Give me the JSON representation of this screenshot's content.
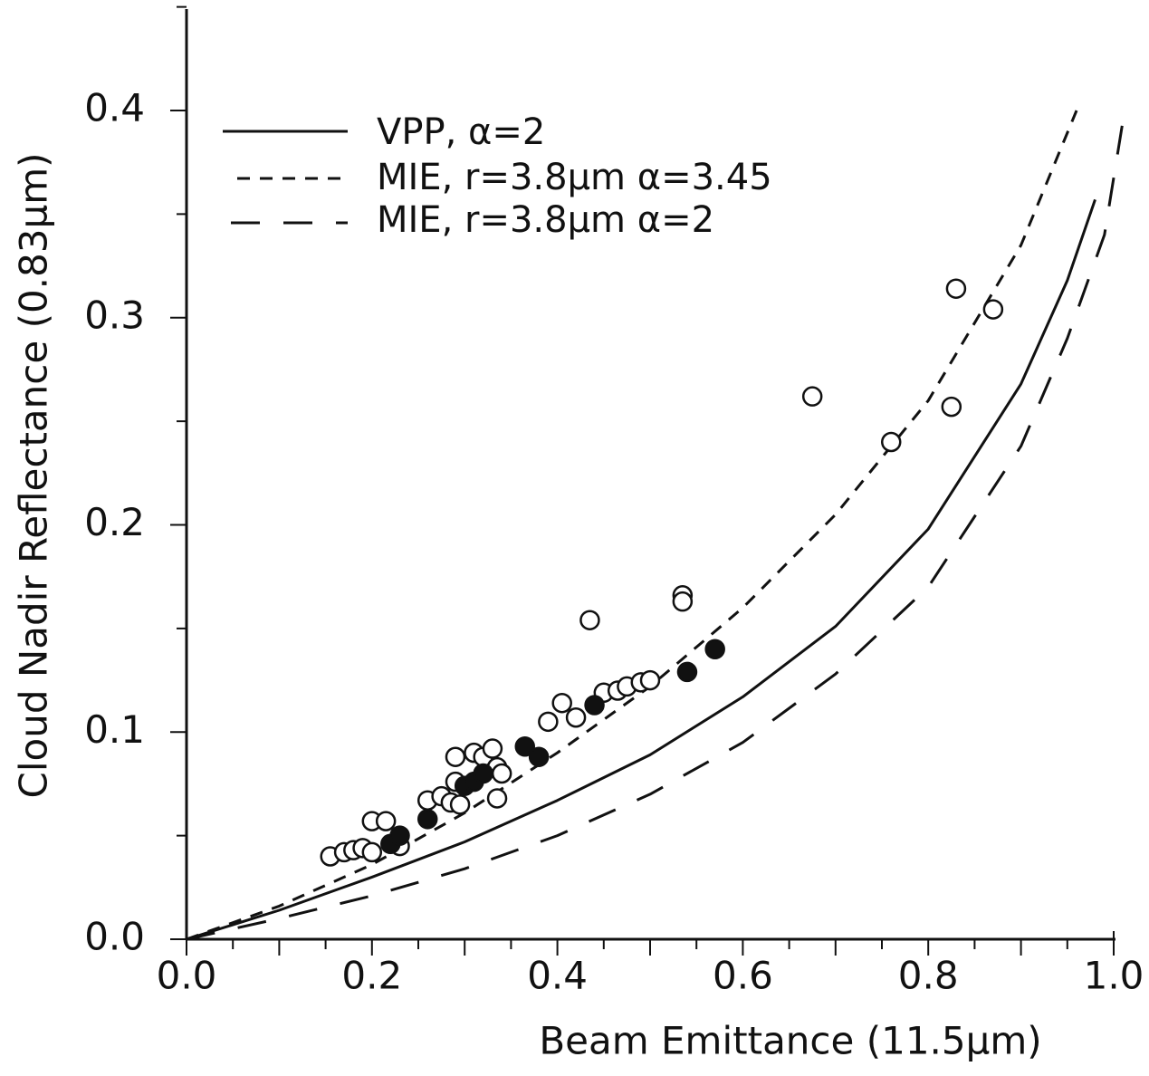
{
  "chart_data": {
    "type": "scatter",
    "xlabel": "Beam Emittance (11.5μm)",
    "ylabel": "Cloud Nadir Reflectance (0.83μm)",
    "xlim": [
      0.0,
      1.0
    ],
    "ylim": [
      0.0,
      0.45
    ],
    "x_tick_labels": [
      "0.0",
      "0.2",
      "0.4",
      "0.6",
      "0.8",
      "1.0"
    ],
    "y_tick_labels": [
      "0.0",
      "0.1",
      "0.2",
      "0.3",
      "0.4"
    ],
    "grid": false,
    "legend_position": "top-left",
    "colors": {
      "ink": "#111111",
      "background": "#ffffff"
    },
    "series": [
      {
        "name": "VPP, α=2",
        "kind": "line",
        "dash": "solid",
        "x": [
          0.0,
          0.1,
          0.2,
          0.3,
          0.4,
          0.5,
          0.6,
          0.7,
          0.8,
          0.9,
          0.95,
          0.98
        ],
        "y": [
          0.0,
          0.014,
          0.03,
          0.047,
          0.067,
          0.089,
          0.117,
          0.151,
          0.198,
          0.268,
          0.318,
          0.357
        ]
      },
      {
        "name": "MIE, r=3.8μm α=3.45",
        "kind": "line",
        "dash": "short",
        "x": [
          0.0,
          0.1,
          0.2,
          0.3,
          0.4,
          0.5,
          0.6,
          0.7,
          0.8,
          0.9,
          0.96
        ],
        "y": [
          0.0,
          0.016,
          0.036,
          0.061,
          0.09,
          0.122,
          0.16,
          0.205,
          0.26,
          0.335,
          0.4
        ]
      },
      {
        "name": "MIE, r=3.8μm α=2",
        "kind": "line",
        "dash": "long",
        "x": [
          0.0,
          0.1,
          0.2,
          0.3,
          0.4,
          0.5,
          0.6,
          0.7,
          0.8,
          0.9,
          0.95,
          0.99,
          1.01
        ],
        "y": [
          0.0,
          0.01,
          0.021,
          0.034,
          0.05,
          0.07,
          0.095,
          0.128,
          0.17,
          0.238,
          0.29,
          0.34,
          0.395
        ]
      },
      {
        "name": "",
        "kind": "open",
        "x": [
          0.155,
          0.17,
          0.18,
          0.19,
          0.2,
          0.2,
          0.215,
          0.23,
          0.26,
          0.275,
          0.285,
          0.29,
          0.29,
          0.295,
          0.31,
          0.32,
          0.33,
          0.335,
          0.335,
          0.34,
          0.39,
          0.405,
          0.42,
          0.435,
          0.45,
          0.465,
          0.475,
          0.49,
          0.5,
          0.535,
          0.535,
          0.675,
          0.76,
          0.825,
          0.83,
          0.87
        ],
        "y": [
          0.04,
          0.042,
          0.043,
          0.044,
          0.042,
          0.057,
          0.057,
          0.045,
          0.067,
          0.069,
          0.066,
          0.076,
          0.088,
          0.065,
          0.09,
          0.088,
          0.092,
          0.083,
          0.068,
          0.08,
          0.105,
          0.114,
          0.107,
          0.154,
          0.119,
          0.12,
          0.122,
          0.124,
          0.125,
          0.166,
          0.163,
          0.262,
          0.24,
          0.257,
          0.314,
          0.304
        ]
      },
      {
        "name": "",
        "kind": "filled",
        "x": [
          0.22,
          0.23,
          0.26,
          0.3,
          0.31,
          0.32,
          0.365,
          0.38,
          0.44,
          0.54,
          0.57
        ],
        "y": [
          0.046,
          0.05,
          0.058,
          0.074,
          0.076,
          0.08,
          0.093,
          0.088,
          0.113,
          0.129,
          0.14
        ]
      }
    ]
  }
}
